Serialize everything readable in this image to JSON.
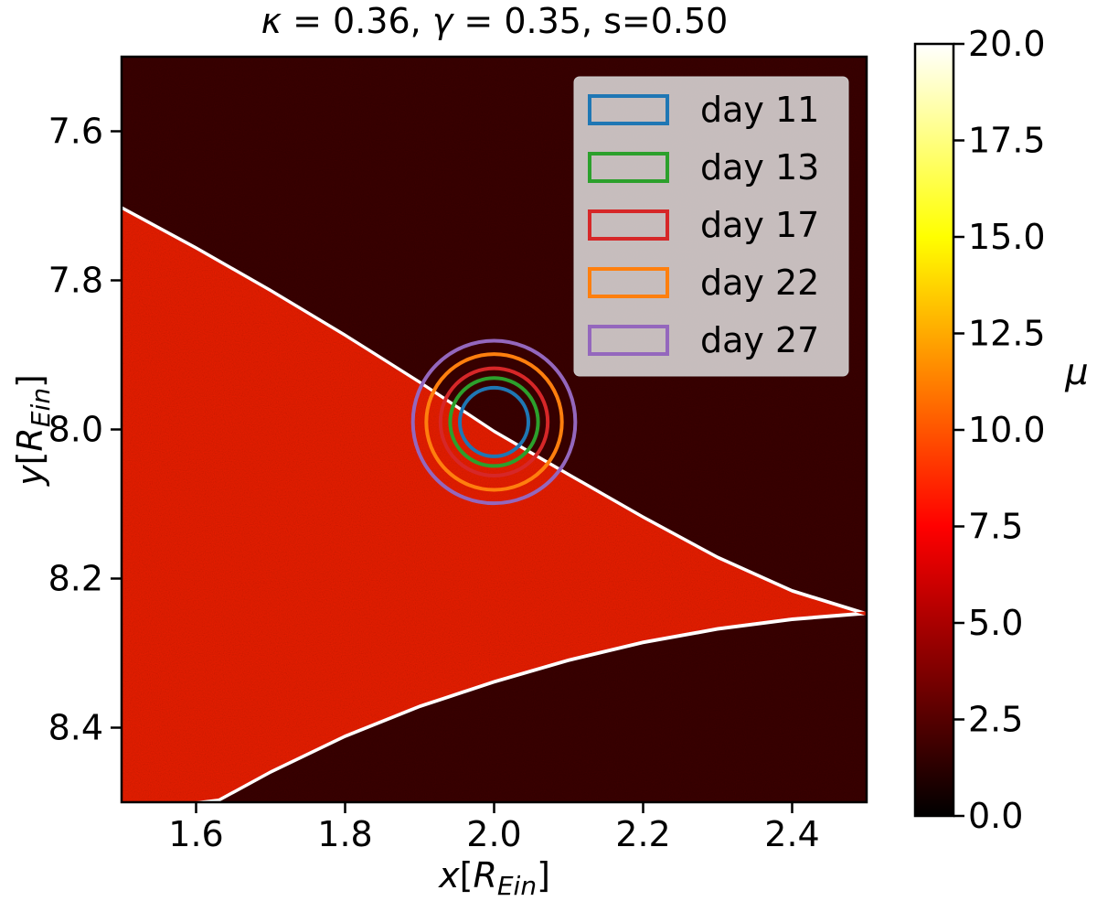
{
  "chart_data": {
    "type": "heatmap",
    "title": "κ = 0.36, γ = 0.35, s=0.50",
    "title_parts": {
      "kappa_symbol": "κ",
      "kappa_value": "0.36",
      "gamma_symbol": "γ",
      "gamma_value": "0.35",
      "s_text": "s=0.50"
    },
    "xlabel": "x[R_Ein]",
    "xlabel_parts": {
      "var": "x",
      "open": "[",
      "R": "R",
      "sub": "Ein",
      "close": "]"
    },
    "ylabel": "y[R_Ein]",
    "ylabel_parts": {
      "var": "y",
      "open": "[",
      "R": "R",
      "sub": "Ein",
      "close": "]"
    },
    "xlim": [
      1.5,
      2.5
    ],
    "ylim": [
      8.5,
      7.5
    ],
    "y_inverted": true,
    "x_ticks": [
      1.6,
      1.8,
      2.0,
      2.2,
      2.4
    ],
    "x_tick_labels": [
      "1.6",
      "1.8",
      "2.0",
      "2.2",
      "2.4"
    ],
    "y_ticks": [
      7.6,
      7.8,
      8.0,
      8.2,
      8.4
    ],
    "y_tick_labels": [
      "7.6",
      "7.8",
      "8.0",
      "8.2",
      "8.4"
    ],
    "colorbar": {
      "label": "μ",
      "range": [
        0.0,
        20.0
      ],
      "colormap": "hot",
      "ticks": [
        0.0,
        2.5,
        5.0,
        7.5,
        10.0,
        12.5,
        15.0,
        17.5,
        20.0
      ],
      "tick_labels": [
        "0.0",
        "2.5",
        "5.0",
        "7.5",
        "10.0",
        "12.5",
        "15.0",
        "17.5",
        "20.0"
      ]
    },
    "caustic": {
      "description": "high-magnification fold region narrowing to a cusp",
      "upper_edge": [
        [
          1.5,
          7.7
        ],
        [
          1.6,
          7.754
        ],
        [
          1.7,
          7.811
        ],
        [
          1.8,
          7.871
        ],
        [
          1.9,
          7.934
        ],
        [
          2.0,
          8.0
        ],
        [
          2.1,
          8.058
        ],
        [
          2.2,
          8.115
        ],
        [
          2.3,
          8.169
        ],
        [
          2.4,
          8.214
        ],
        [
          2.5,
          8.245
        ]
      ],
      "lower_edge": [
        [
          1.63,
          8.5
        ],
        [
          1.7,
          8.462
        ],
        [
          1.8,
          8.414
        ],
        [
          1.9,
          8.374
        ],
        [
          2.0,
          8.341
        ],
        [
          2.1,
          8.312
        ],
        [
          2.2,
          8.288
        ],
        [
          2.3,
          8.27
        ],
        [
          2.4,
          8.257
        ],
        [
          2.5,
          8.249
        ]
      ],
      "inside_mu": 8.0,
      "edge_mu": 20.0,
      "background_mu": 2.0
    },
    "source_circles": [
      {
        "name": "day 11",
        "color": "#1f77b4",
        "center": [
          2.0,
          7.99
        ],
        "radius": 0.046
      },
      {
        "name": "day 13",
        "color": "#2ca02c",
        "center": [
          2.0,
          7.99
        ],
        "radius": 0.059
      },
      {
        "name": "day 17",
        "color": "#d62728",
        "center": [
          2.0,
          7.99
        ],
        "radius": 0.072
      },
      {
        "name": "day 22",
        "color": "#ff7f0e",
        "center": [
          2.0,
          7.99
        ],
        "radius": 0.091
      },
      {
        "name": "day 27",
        "color": "#9467bd",
        "center": [
          2.0,
          7.99
        ],
        "radius": 0.109
      }
    ],
    "legend": {
      "placement": "upper-right"
    }
  }
}
